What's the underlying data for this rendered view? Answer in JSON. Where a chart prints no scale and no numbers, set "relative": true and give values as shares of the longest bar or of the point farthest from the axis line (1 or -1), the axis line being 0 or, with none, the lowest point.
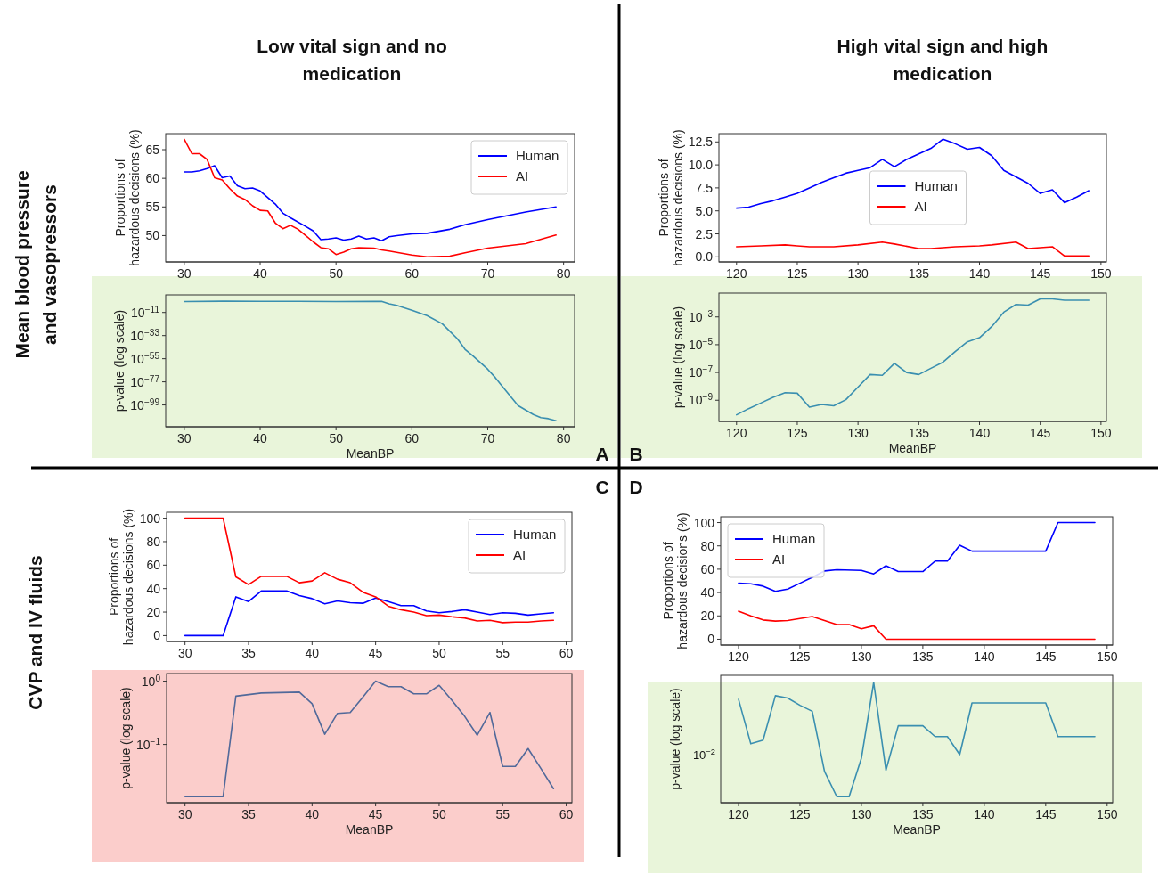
{
  "chart_data": [
    {
      "type": "line",
      "title": "Low vital sign and no medication",
      "ylabel": "Proportions of hazardous decisions (%)",
      "annotations": [
        "Mean blood pressure and vasopressors"
      ],
      "xlim": [
        27.55,
        81.45
      ],
      "xticks": [
        30,
        40,
        50,
        60,
        70,
        80
      ],
      "ylim": [
        45.4,
        67.8
      ],
      "yticks": [
        50,
        55,
        60,
        65
      ],
      "legend": "top right",
      "series": [
        {
          "name": "Human",
          "color": "#0000ff",
          "x": [
            30,
            31,
            32,
            33,
            34,
            35,
            36,
            37,
            38,
            39,
            40,
            42,
            43,
            44,
            46,
            47,
            48,
            49,
            50,
            51,
            52,
            53,
            54,
            55,
            56,
            57,
            58,
            60,
            62,
            65,
            67,
            70,
            75,
            79
          ],
          "values": [
            61.1,
            61.1,
            61.3,
            61.7,
            62.2,
            60.1,
            60.4,
            58.7,
            58.2,
            58.3,
            57.8,
            55.5,
            53.9,
            53.1,
            51.6,
            50.8,
            49.3,
            49.4,
            49.6,
            49.2,
            49.4,
            49.9,
            49.4,
            49.6,
            49.1,
            49.8,
            50.0,
            50.3,
            50.4,
            51.1,
            51.9,
            52.8,
            54.1,
            55.0
          ]
        },
        {
          "name": "AI",
          "color": "#ff0000",
          "x": [
            30,
            31,
            32,
            33,
            34,
            35,
            36,
            37,
            38,
            39,
            40,
            41,
            42,
            43,
            44,
            45,
            46,
            47,
            48,
            49,
            50,
            51,
            52,
            53,
            55,
            56,
            57,
            60,
            62,
            65,
            67,
            70,
            75,
            79
          ],
          "values": [
            66.8,
            64.3,
            64.3,
            63.3,
            60.1,
            59.7,
            58.2,
            56.9,
            56.3,
            55.2,
            54.4,
            54.3,
            52.2,
            51.2,
            51.8,
            51.1,
            50.0,
            48.9,
            47.9,
            47.7,
            46.7,
            47.1,
            47.7,
            47.9,
            47.8,
            47.5,
            47.3,
            46.6,
            46.3,
            46.4,
            47.0,
            47.8,
            48.6,
            50.1
          ]
        }
      ]
    },
    {
      "type": "line",
      "xlabel": "MeanBP",
      "ylabel": "p-value (log scale)",
      "annotations": [
        "A"
      ],
      "log": true,
      "xlim": [
        27.55,
        81.45
      ],
      "xticks": [
        30,
        40,
        50,
        60,
        70,
        80
      ],
      "ylim": [
        2e-120,
        500000.0
      ],
      "yticks": [
        {
          "value": 1e-11,
          "label": "10$^{−11}$"
        },
        {
          "value": 1e-33,
          "label": "10$^{−33}$"
        },
        {
          "value": 1e-55,
          "label": "10$^{−55}$"
        },
        {
          "value": 1e-77,
          "label": "10$^{−77}$"
        },
        {
          "value": 1e-99,
          "label": "10$^{−99}$"
        }
      ],
      "series": [
        {
          "color": "#3a8fb0",
          "x": [
            30,
            35,
            40,
            45,
            50,
            55,
            56,
            57,
            58,
            60,
            62,
            64,
            66,
            67,
            68,
            70,
            71,
            72,
            74,
            76,
            77,
            78,
            79
          ],
          "values": [
            0.25,
            0.5,
            0.4,
            0.4,
            0.2,
            0.3,
            0.4,
            0.0016,
            5e-05,
            1.3e-09,
            1e-14,
            2e-22,
            1e-36,
            1e-46,
            1e-52,
            1e-65,
            1e-73,
            1e-82,
            2.5e-100,
            1e-108,
            1e-111,
            1e-112,
            1e-114
          ]
        }
      ]
    },
    {
      "type": "line",
      "title": "High vital sign and high medication",
      "ylabel": "Proportions of hazardous decisions (%)",
      "xlim": [
        118.55,
        150.45
      ],
      "xticks": [
        120,
        125,
        130,
        135,
        140,
        145,
        150
      ],
      "ylim": [
        -0.55,
        13.4
      ],
      "yticks": [
        {
          "value": 0,
          "label": "0.0"
        },
        2.5,
        {
          "value": 5,
          "label": "5.0"
        },
        7.5,
        {
          "value": 10,
          "label": "10.0"
        },
        12.5
      ],
      "legend": "center",
      "series": [
        {
          "name": "Human",
          "color": "#0000ff",
          "x": [
            120,
            121,
            122,
            123,
            124,
            125,
            126,
            127,
            128,
            129,
            130,
            131,
            132,
            133,
            134,
            135,
            136,
            137,
            138,
            139,
            140,
            141,
            142,
            143,
            144,
            145,
            146,
            147,
            148,
            149
          ],
          "values": [
            5.3,
            5.4,
            5.8,
            6.1,
            6.5,
            6.9,
            7.5,
            8.1,
            8.6,
            9.1,
            9.4,
            9.7,
            10.6,
            9.8,
            10.6,
            11.2,
            11.8,
            12.8,
            12.3,
            11.7,
            11.9,
            11.0,
            9.4,
            8.7,
            8.0,
            6.9,
            7.3,
            5.9,
            6.5,
            7.2
          ]
        },
        {
          "name": "AI",
          "color": "#ff0000",
          "x": [
            120,
            122,
            124,
            125,
            126,
            128,
            130,
            132,
            133,
            135,
            136,
            138,
            140,
            141,
            143,
            144,
            146,
            147,
            149
          ],
          "values": [
            1.1,
            1.2,
            1.3,
            1.2,
            1.1,
            1.1,
            1.3,
            1.6,
            1.4,
            0.9,
            0.9,
            1.1,
            1.2,
            1.3,
            1.6,
            0.9,
            1.1,
            0.1,
            0.1
          ]
        }
      ]
    },
    {
      "type": "line",
      "xlabel": "MeanBP",
      "ylabel": "p-value (log scale)",
      "annotations": [
        "B"
      ],
      "log": true,
      "xlim": [
        118.55,
        150.45
      ],
      "xticks": [
        120,
        125,
        130,
        135,
        140,
        145,
        150
      ],
      "ylim": [
        3e-11,
        0.052
      ],
      "yticks": [
        {
          "value": 0.001,
          "label": "10$^{−3}$"
        },
        {
          "value": 1e-05,
          "label": "10$^{−5}$"
        },
        {
          "value": 1e-07,
          "label": "10$^{−7}$"
        },
        {
          "value": 1e-09,
          "label": "10$^{−9}$"
        }
      ],
      "series": [
        {
          "color": "#3a8fb0",
          "x": [
            120,
            121,
            122,
            123,
            124,
            125,
            126,
            127,
            128,
            129,
            130,
            131,
            132,
            133,
            134,
            135,
            136,
            137,
            138,
            139,
            140,
            141,
            142,
            143,
            144,
            145,
            146,
            147,
            149
          ],
          "values": [
            8.9e-11,
            2.5e-10,
            6.3e-10,
            1.6e-09,
            3.5e-09,
            3.2e-09,
            3.2e-10,
            5e-10,
            4e-10,
            1.1e-09,
            8.9e-09,
            7.1e-08,
            6.3e-08,
            4.5e-07,
            1e-07,
            7.1e-08,
            2e-07,
            5.6e-07,
            3.2e-06,
            1.6e-05,
            3.2e-05,
            0.0002,
            0.0022,
            0.0079,
            0.0071,
            0.02,
            0.02,
            0.016,
            0.016
          ]
        }
      ]
    },
    {
      "type": "line",
      "ylabel": "Proportions of hazardous decisions (%)",
      "annotations": [
        "CVP and IV fluids",
        "C"
      ],
      "xlim": [
        28.55,
        60.45
      ],
      "xticks": [
        30,
        35,
        40,
        45,
        50,
        55,
        60
      ],
      "ylim": [
        -5,
        105
      ],
      "yticks": [
        0,
        20,
        40,
        60,
        80,
        100
      ],
      "legend": "top right",
      "series": [
        {
          "name": "Human",
          "color": "#0000ff",
          "x": [
            30,
            33,
            34,
            35,
            36,
            38,
            39,
            40,
            41,
            42,
            43,
            44,
            45,
            46,
            47,
            48,
            49,
            50,
            51,
            52,
            53,
            54,
            55,
            56,
            57,
            58,
            59
          ],
          "values": [
            0,
            0,
            33,
            29,
            38,
            38,
            34,
            31.5,
            27,
            29.5,
            28,
            27.5,
            32,
            29,
            25.5,
            25.5,
            21,
            19.5,
            20.5,
            22,
            20,
            18,
            19.5,
            19,
            17.5,
            18.5,
            19.5
          ]
        },
        {
          "name": "AI",
          "color": "#ff0000",
          "x": [
            30,
            33,
            34,
            35,
            36,
            38,
            39,
            40,
            41,
            42,
            43,
            44,
            45,
            46,
            47,
            48,
            49,
            50,
            51,
            52,
            53,
            54,
            55,
            56,
            57,
            58,
            59
          ],
          "values": [
            100,
            100,
            50,
            43.5,
            50.5,
            50.5,
            45,
            46.5,
            53.5,
            48,
            45,
            37,
            33,
            25,
            22,
            20,
            17,
            17.5,
            16,
            15,
            12.5,
            13,
            11,
            11.5,
            11.5,
            12.5,
            13
          ]
        }
      ]
    },
    {
      "type": "line",
      "xlabel": "MeanBP",
      "ylabel": "p-value (log scale)",
      "log": true,
      "xlim": [
        28.55,
        60.45
      ],
      "xticks": [
        30,
        35,
        40,
        45,
        50,
        55,
        60
      ],
      "ylim": [
        0.012,
        1.32
      ],
      "yticks": [
        {
          "value": 1,
          "label": "10$^{0}$"
        },
        {
          "value": 0.1,
          "label": "10$^{−1}$"
        }
      ],
      "series": [
        {
          "color": "#51699a",
          "x": [
            30,
            33,
            34,
            36,
            39,
            40,
            41,
            42,
            43,
            44,
            45,
            46,
            47,
            48,
            49,
            50,
            51,
            52,
            53,
            54,
            55,
            56,
            57,
            58,
            59
          ],
          "values": [
            0.015,
            0.015,
            0.58,
            0.65,
            0.67,
            0.44,
            0.145,
            0.31,
            0.32,
            0.56,
            1.0,
            0.82,
            0.82,
            0.63,
            0.63,
            0.86,
            0.5,
            0.28,
            0.14,
            0.32,
            0.045,
            0.045,
            0.086,
            0.042,
            0.02
          ]
        }
      ]
    },
    {
      "type": "line",
      "ylabel": "Proportions of hazardous decisions (%)",
      "annotations": [
        "D"
      ],
      "xlim": [
        118.55,
        150.45
      ],
      "xticks": [
        120,
        125,
        130,
        135,
        140,
        145,
        150
      ],
      "ylim": [
        -5,
        105
      ],
      "yticks": [
        0,
        20,
        40,
        60,
        80,
        100
      ],
      "legend": "top left",
      "series": [
        {
          "name": "Human",
          "color": "#0000ff",
          "x": [
            120,
            121,
            122,
            123,
            124,
            125,
            126,
            127,
            128,
            130,
            131,
            132,
            133,
            135,
            136,
            137,
            138,
            139,
            145,
            146,
            149
          ],
          "values": [
            48,
            47.5,
            45.5,
            41,
            43,
            48,
            53,
            58.5,
            59.5,
            59,
            56,
            63,
            58,
            58,
            67,
            67,
            80.5,
            75.5,
            75.5,
            100,
            100
          ]
        },
        {
          "name": "AI",
          "color": "#ff0000",
          "x": [
            120,
            121,
            122,
            123,
            124,
            126,
            127,
            128,
            129,
            130,
            131,
            132,
            149
          ],
          "values": [
            24,
            20,
            16.5,
            15.5,
            16,
            19.5,
            16,
            12.5,
            12.5,
            9,
            11.5,
            0,
            0
          ]
        }
      ]
    },
    {
      "type": "line",
      "xlabel": "MeanBP",
      "ylabel": "p-value (log scale)",
      "annotations": [
        "10$^{−2}$"
      ],
      "relative": true,
      "xlim": [
        118.55,
        150.45
      ],
      "xticks": [
        120,
        125,
        130,
        135,
        140,
        145,
        150
      ],
      "series": [
        {
          "color": "#3a8fb0",
          "x": [
            120,
            121,
            122,
            123,
            124,
            125,
            126,
            127,
            128,
            129,
            130,
            131,
            132,
            133,
            135,
            136,
            137,
            138,
            139,
            145,
            146,
            149
          ],
          "values": [
            0.86,
            0.49,
            0.52,
            0.89,
            0.87,
            0.81,
            0.76,
            0.26,
            0.05,
            0.05,
            0.37,
            1.0,
            0.27,
            0.64,
            0.64,
            0.55,
            0.55,
            0.4,
            0.83,
            0.83,
            0.55,
            0.55
          ]
        }
      ]
    }
  ]
}
